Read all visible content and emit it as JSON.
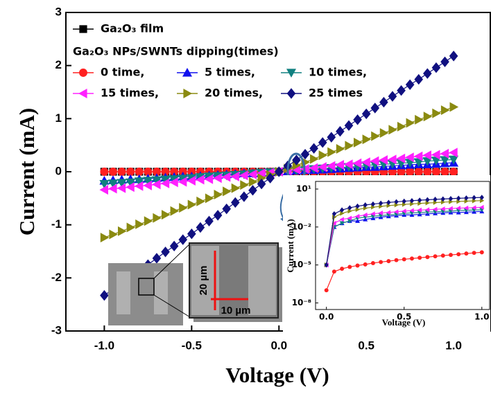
{
  "chart_data": [
    {
      "type": "scatter-line",
      "xlabel": "Voltage (V)",
      "ylabel": "Current (mA)",
      "legend_title": "Ga₂O₃ NPs/SWNTs dipping(times)",
      "legend": "upper left",
      "x": [
        -1.0,
        -0.95,
        -0.9,
        -0.85,
        -0.8,
        -0.75,
        -0.7,
        -0.65,
        -0.6,
        -0.55,
        -0.5,
        -0.45,
        -0.4,
        -0.35,
        -0.3,
        -0.25,
        -0.2,
        -0.15,
        -0.1,
        -0.05,
        0,
        0.05,
        0.1,
        0.15,
        0.2,
        0.25,
        0.3,
        0.35,
        0.4,
        0.45,
        0.5,
        0.55,
        0.6,
        0.65,
        0.7,
        0.75,
        0.8,
        0.85,
        0.9,
        0.95,
        1.0
      ],
      "xlim": [
        -1.22,
        1.21
      ],
      "ylim": [
        -3,
        3
      ],
      "xticks": [
        {
          "value": -1,
          "label": "-1.0"
        },
        -0.5,
        {
          "value": 0,
          "label": "0.0"
        },
        0.5,
        {
          "value": 1,
          "label": "1.0"
        }
      ],
      "yticks": [
        -3,
        -2,
        -1,
        0,
        1,
        2,
        3
      ],
      "series": [
        {
          "name": "Ga₂O₃ film",
          "color": "#000000",
          "marker": "square",
          "values": [
            0,
            0,
            0,
            0,
            0,
            0,
            0,
            0,
            0,
            0,
            0,
            0,
            0,
            0,
            0,
            0,
            0,
            0,
            0,
            0,
            0,
            0,
            0,
            0,
            0,
            0,
            0,
            0,
            0,
            0,
            0,
            0,
            0,
            0,
            0,
            0,
            0,
            0,
            0,
            0,
            0
          ]
        },
        {
          "name": "0 time,",
          "color": "#ff2020",
          "marker": "circle",
          "values": [
            0,
            0,
            0,
            0,
            0,
            0,
            0,
            0,
            0,
            0,
            0,
            0,
            0,
            0,
            0,
            0,
            0,
            0,
            0,
            0,
            0,
            0,
            0,
            0,
            0,
            0,
            0,
            0,
            0,
            0,
            0,
            0,
            0,
            0,
            0,
            0,
            0,
            0,
            0,
            0,
            0
          ]
        },
        {
          "name": "5 times,",
          "color": "#1010ee",
          "marker": "up",
          "values": [
            -0.17,
            -0.16,
            -0.15,
            -0.14,
            -0.14,
            -0.13,
            -0.12,
            -0.11,
            -0.1,
            -0.09,
            -0.09,
            -0.08,
            -0.07,
            -0.06,
            -0.05,
            -0.04,
            -0.03,
            -0.03,
            -0.02,
            -0.01,
            0,
            0.01,
            0.02,
            0.03,
            0.03,
            0.04,
            0.05,
            0.06,
            0.07,
            0.08,
            0.09,
            0.09,
            0.1,
            0.11,
            0.12,
            0.13,
            0.14,
            0.14,
            0.15,
            0.16,
            0.17
          ]
        },
        {
          "name": "10 times,",
          "color": "#118080",
          "marker": "down",
          "values": [
            -0.23,
            -0.22,
            -0.21,
            -0.2,
            -0.18,
            -0.17,
            -0.16,
            -0.15,
            -0.14,
            -0.13,
            -0.12,
            -0.1,
            -0.09,
            -0.08,
            -0.07,
            -0.06,
            -0.05,
            -0.03,
            -0.02,
            -0.01,
            0,
            0.01,
            0.02,
            0.03,
            0.05,
            0.06,
            0.07,
            0.08,
            0.09,
            0.1,
            0.12,
            0.13,
            0.14,
            0.15,
            0.16,
            0.17,
            0.18,
            0.2,
            0.21,
            0.22,
            0.23
          ]
        },
        {
          "name": "15 times,",
          "color": "#ff20ff",
          "marker": "left",
          "values": [
            -0.34,
            -0.32,
            -0.31,
            -0.29,
            -0.27,
            -0.26,
            -0.24,
            -0.22,
            -0.2,
            -0.19,
            -0.17,
            -0.15,
            -0.14,
            -0.12,
            -0.1,
            -0.09,
            -0.07,
            -0.05,
            -0.03,
            -0.02,
            0,
            0.02,
            0.04,
            0.05,
            0.07,
            0.09,
            0.11,
            0.13,
            0.14,
            0.16,
            0.18,
            0.2,
            0.22,
            0.23,
            0.25,
            0.27,
            0.29,
            0.31,
            0.32,
            0.34,
            0.36
          ]
        },
        {
          "name": "20 times,",
          "color": "#8a8a10",
          "marker": "right",
          "values": [
            -1.24,
            -1.18,
            -1.12,
            -1.05,
            -0.99,
            -0.93,
            -0.87,
            -0.81,
            -0.74,
            -0.68,
            -0.62,
            -0.56,
            -0.5,
            -0.43,
            -0.37,
            -0.31,
            -0.25,
            -0.19,
            -0.12,
            -0.06,
            0,
            0.06,
            0.12,
            0.18,
            0.24,
            0.31,
            0.37,
            0.43,
            0.49,
            0.55,
            0.61,
            0.67,
            0.73,
            0.79,
            0.85,
            0.92,
            0.98,
            1.04,
            1.1,
            1.16,
            1.22
          ]
        },
        {
          "name": "25 times",
          "color": "#101080",
          "marker": "diamond",
          "values": [
            -2.33,
            -2.21,
            -2.1,
            -1.98,
            -1.86,
            -1.75,
            -1.63,
            -1.51,
            -1.4,
            -1.28,
            -1.17,
            -1.05,
            -0.93,
            -0.82,
            -0.7,
            -0.58,
            -0.47,
            -0.35,
            -0.23,
            -0.12,
            0,
            0.11,
            0.22,
            0.33,
            0.44,
            0.55,
            0.65,
            0.76,
            0.87,
            0.98,
            1.09,
            1.2,
            1.31,
            1.42,
            1.53,
            1.64,
            1.74,
            1.85,
            1.96,
            2.07,
            2.18
          ]
        }
      ],
      "annotations": [
        "20 µm",
        "10 µm"
      ]
    },
    {
      "type": "scatter-line",
      "ylog": true,
      "xlabel": "Voltage (V)",
      "ylabel": "Current (mA)",
      "x": [
        0,
        0.05,
        0.1,
        0.15,
        0.2,
        0.25,
        0.3,
        0.35,
        0.4,
        0.45,
        0.5,
        0.55,
        0.6,
        0.65,
        0.7,
        0.75,
        0.8,
        0.85,
        0.9,
        0.95,
        1.0
      ],
      "xlim": [
        -0.07,
        1.05
      ],
      "ylim": [
        3e-09,
        40
      ],
      "xticks": [
        {
          "value": 0,
          "label": "0.0"
        },
        0.5,
        {
          "value": 1,
          "label": "1.0"
        }
      ],
      "yticks": [
        {
          "value": 1e-08,
          "label": "10⁻⁸"
        },
        {
          "value": 1e-05,
          "label": "10⁻⁵"
        },
        {
          "value": 0.01,
          "label": "10⁻²"
        },
        {
          "value": 10,
          "label": "10¹"
        }
      ],
      "series": [
        {
          "color": "#ff2020",
          "marker": "circle",
          "values": [
            1e-07,
            3e-06,
            5e-06,
            7e-06,
            9e-06,
            1.1e-05,
            1.4e-05,
            1.7e-05,
            2e-05,
            2.4e-05,
            2.8e-05,
            3.2e-05,
            3.7e-05,
            4.2e-05,
            4.8e-05,
            5.5e-05,
            6.2e-05,
            7e-05,
            8e-05,
            9e-05,
            0.0001
          ]
        },
        {
          "color": "#1010ee",
          "marker": "up",
          "values": [
            1e-05,
            0.01,
            0.02,
            0.03,
            0.03,
            0.04,
            0.05,
            0.06,
            0.07,
            0.08,
            0.09,
            0.09,
            0.1,
            0.11,
            0.12,
            0.13,
            0.14,
            0.14,
            0.15,
            0.16,
            0.17
          ]
        },
        {
          "color": "#118080",
          "marker": "down",
          "values": [
            1e-05,
            0.01,
            0.02,
            0.03,
            0.05,
            0.06,
            0.07,
            0.08,
            0.09,
            0.1,
            0.12,
            0.13,
            0.14,
            0.15,
            0.16,
            0.17,
            0.18,
            0.2,
            0.21,
            0.22,
            0.23
          ]
        },
        {
          "color": "#ff20ff",
          "marker": "left",
          "values": [
            1e-05,
            0.02,
            0.04,
            0.05,
            0.07,
            0.09,
            0.11,
            0.13,
            0.14,
            0.16,
            0.18,
            0.2,
            0.22,
            0.23,
            0.25,
            0.27,
            0.29,
            0.31,
            0.32,
            0.34,
            0.36
          ]
        },
        {
          "color": "#8a8a10",
          "marker": "right",
          "values": [
            1e-05,
            0.06,
            0.12,
            0.18,
            0.24,
            0.31,
            0.37,
            0.43,
            0.49,
            0.55,
            0.61,
            0.67,
            0.73,
            0.79,
            0.85,
            0.92,
            0.98,
            1.04,
            1.1,
            1.16,
            1.22
          ]
        },
        {
          "color": "#101080",
          "marker": "diamond",
          "values": [
            1e-05,
            0.11,
            0.22,
            0.33,
            0.44,
            0.55,
            0.65,
            0.76,
            0.87,
            0.98,
            1.09,
            1.2,
            1.31,
            1.42,
            1.53,
            1.64,
            1.74,
            1.85,
            1.96,
            2.07,
            2.18
          ]
        }
      ]
    }
  ]
}
